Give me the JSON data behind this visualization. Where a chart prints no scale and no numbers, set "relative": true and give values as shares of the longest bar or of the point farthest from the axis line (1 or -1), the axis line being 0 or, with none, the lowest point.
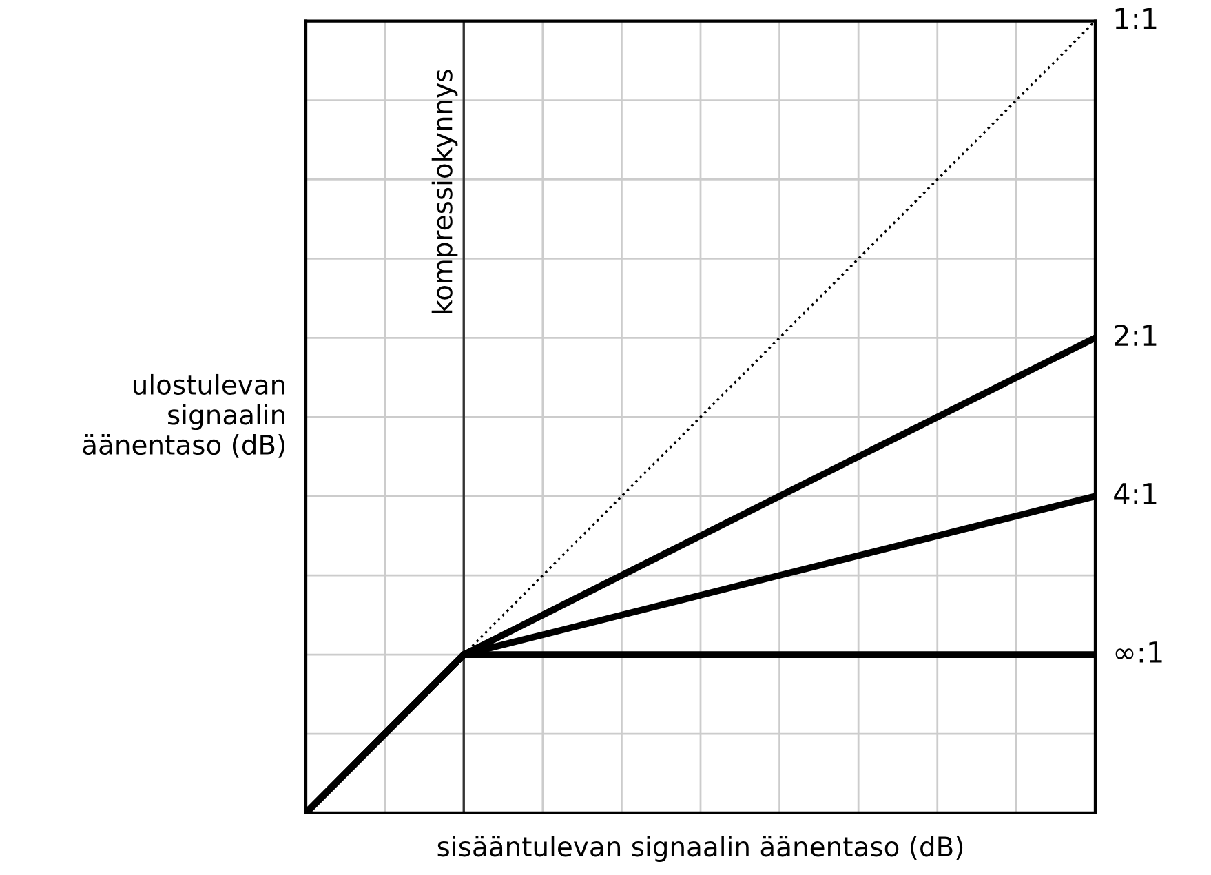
{
  "chart_data": {
    "type": "line",
    "relative": true,
    "xlabel": "sisääntulevan signaalin äänentaso (dB)",
    "ylabel": "ulostulevan\nsignaalin\näänentaso (dB)",
    "tick_labels": false,
    "grid": true,
    "marker": "none",
    "categories": [
      null,
      null,
      null,
      null,
      null,
      null,
      null,
      null,
      null,
      null,
      null
    ],
    "series": [
      {
        "name": "1:1",
        "color": "#000000",
        "line_style": "dotted",
        "values": [
          null,
          null,
          0.2,
          0.3,
          0.4,
          0.5,
          0.6,
          0.7,
          0.8,
          0.9,
          1.0
        ]
      },
      {
        "name": "2:1",
        "color": "#000000",
        "line_style": "solid",
        "values": [
          0,
          0.1,
          0.2,
          0.25,
          0.3,
          0.35,
          0.4,
          0.45,
          0.5,
          0.55,
          0.6
        ]
      },
      {
        "name": "4:1",
        "color": "#000000",
        "line_style": "solid",
        "values": [
          0,
          0.1,
          0.2,
          0.225,
          0.25,
          0.275,
          0.3,
          0.325,
          0.35,
          0.375,
          0.4
        ]
      },
      {
        "name": "∞:1",
        "color": "#000000",
        "line_style": "solid",
        "values": [
          0,
          0.1,
          0.2,
          0.2,
          0.2,
          0.2,
          0.2,
          0.2,
          0.2,
          0.2,
          0.2
        ]
      }
    ],
    "ref_lines": [
      {
        "axis": "x",
        "label": "kompressiokynnys",
        "color": "#333333"
      }
    ]
  }
}
